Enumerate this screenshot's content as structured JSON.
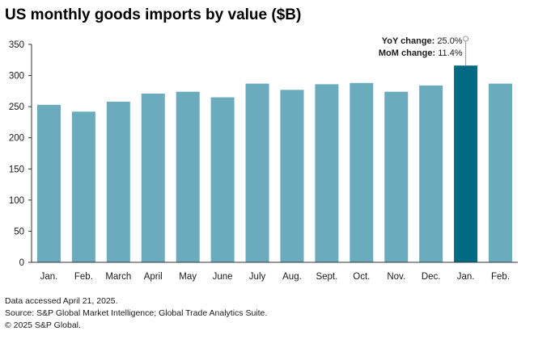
{
  "chart_data": {
    "type": "bar",
    "title": "US monthly goods imports by value ($B)",
    "xlabel": "",
    "ylabel": "",
    "ylim": [
      0,
      350
    ],
    "yticks": [
      0,
      50,
      100,
      150,
      200,
      250,
      300,
      350
    ],
    "grid": false,
    "categories": [
      "Jan.",
      "Feb.",
      "March",
      "April",
      "May",
      "June",
      "July",
      "Aug.",
      "Sept.",
      "Oct.",
      "Nov.",
      "Dec.",
      "Jan.",
      "Feb."
    ],
    "values": [
      253,
      242,
      258,
      271,
      274,
      265,
      287,
      277,
      286,
      288,
      274,
      284,
      316,
      287
    ],
    "highlight_index": 12,
    "annotations": [
      "YoY change: 25.0%",
      "MoM change: 11.4%"
    ]
  },
  "colors": {
    "bar": "#6babbe",
    "highlight_bar": "#006a85",
    "axis": "#333333",
    "marker": "#999999"
  },
  "footer": {
    "accessed": "Data accessed April 21, 2025.",
    "source": "Source: S&P Global Market Intelligence; Global Trade Analytics Suite.",
    "copyright": "© 2025 S&P Global."
  }
}
